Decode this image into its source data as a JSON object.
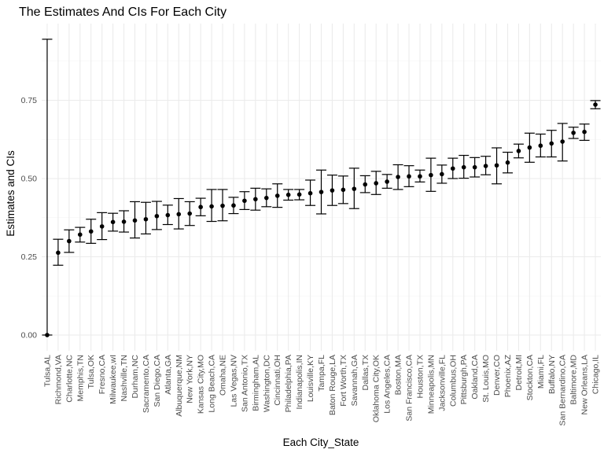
{
  "chart_data": {
    "type": "scatter",
    "title": "The Estimates And CIs For Each City",
    "xlabel": "Each City_State",
    "ylabel": "Estimates and CIs",
    "ylim": [
      -0.03,
      0.96
    ],
    "yticks": [
      0.0,
      0.25,
      0.5,
      0.75
    ],
    "ytick_labels": [
      "0.00",
      "0.25",
      "0.50",
      "0.75"
    ],
    "grid": true,
    "legend": "none",
    "point_color": "#000000",
    "categories": [
      "Tulsa,AL",
      "Richmond,VA",
      "Charlotte,NC",
      "Memphis,TN",
      "Tulsa,OK",
      "Fresno,CA",
      "Milwaukee,wI",
      "Nashville,TN",
      "Durham,NC",
      "Sacramento,CA",
      "San Diego,CA",
      "Atlanta,GA",
      "Albuquerque,NM",
      "New York,NY",
      "Kansas City,MO",
      "Long Beach,CA",
      "Omaha,NE",
      "Las Vegas,NV",
      "San Antonio,TX",
      "Birmingham,AL",
      "Washington,DC",
      "Cincinnati,OH",
      "Philadelphia,PA",
      "Indianapolis,IN",
      "Louisville,KY",
      "Tampa,FL",
      "Baton Rouge,LA",
      "Fort Worth,TX",
      "Savannah,GA",
      "Dallas,TX",
      "Oklahoma City,OK",
      "Los Angeles,CA",
      "Boston,MA",
      "San Francisco,CA",
      "Houston,TX",
      "Minneapolis,MN",
      "Jacksonville,FL",
      "Columbus,OH",
      "Pittsburgh,PA",
      "Oakland,CA",
      "St. Louis,MO",
      "Denver,CO",
      "Phoenix,AZ",
      "Detroit,MI",
      "Stockton,CA",
      "Miami,FL",
      "Buffalo,NY",
      "San Bernardino,CA",
      "Baltimore,MD",
      "New Orleans,LA",
      "Chicago,IL"
    ],
    "estimates": [
      0.0,
      0.263,
      0.3,
      0.321,
      0.331,
      0.347,
      0.361,
      0.362,
      0.366,
      0.37,
      0.38,
      0.383,
      0.386,
      0.388,
      0.409,
      0.411,
      0.413,
      0.414,
      0.429,
      0.434,
      0.438,
      0.445,
      0.448,
      0.449,
      0.453,
      0.457,
      0.462,
      0.464,
      0.467,
      0.481,
      0.485,
      0.49,
      0.505,
      0.507,
      0.507,
      0.511,
      0.514,
      0.532,
      0.536,
      0.536,
      0.54,
      0.542,
      0.551,
      0.588,
      0.599,
      0.605,
      0.612,
      0.618,
      0.646,
      0.649,
      0.736
    ],
    "lower": [
      0.0,
      0.223,
      0.264,
      0.297,
      0.293,
      0.305,
      0.332,
      0.329,
      0.31,
      0.323,
      0.337,
      0.353,
      0.339,
      0.35,
      0.381,
      0.363,
      0.365,
      0.388,
      0.401,
      0.399,
      0.41,
      0.408,
      0.431,
      0.432,
      0.414,
      0.387,
      0.414,
      0.42,
      0.404,
      0.455,
      0.449,
      0.469,
      0.465,
      0.474,
      0.489,
      0.459,
      0.485,
      0.5,
      0.501,
      0.505,
      0.512,
      0.483,
      0.518,
      0.566,
      0.552,
      0.569,
      0.569,
      0.556,
      0.628,
      0.622,
      0.723
    ],
    "upper": [
      0.945,
      0.306,
      0.336,
      0.344,
      0.37,
      0.391,
      0.389,
      0.397,
      0.426,
      0.424,
      0.427,
      0.415,
      0.436,
      0.426,
      0.437,
      0.465,
      0.465,
      0.44,
      0.458,
      0.469,
      0.467,
      0.483,
      0.465,
      0.465,
      0.495,
      0.527,
      0.511,
      0.508,
      0.533,
      0.509,
      0.523,
      0.513,
      0.544,
      0.541,
      0.527,
      0.565,
      0.543,
      0.565,
      0.574,
      0.567,
      0.571,
      0.598,
      0.584,
      0.61,
      0.645,
      0.642,
      0.654,
      0.676,
      0.664,
      0.674,
      0.749
    ]
  }
}
